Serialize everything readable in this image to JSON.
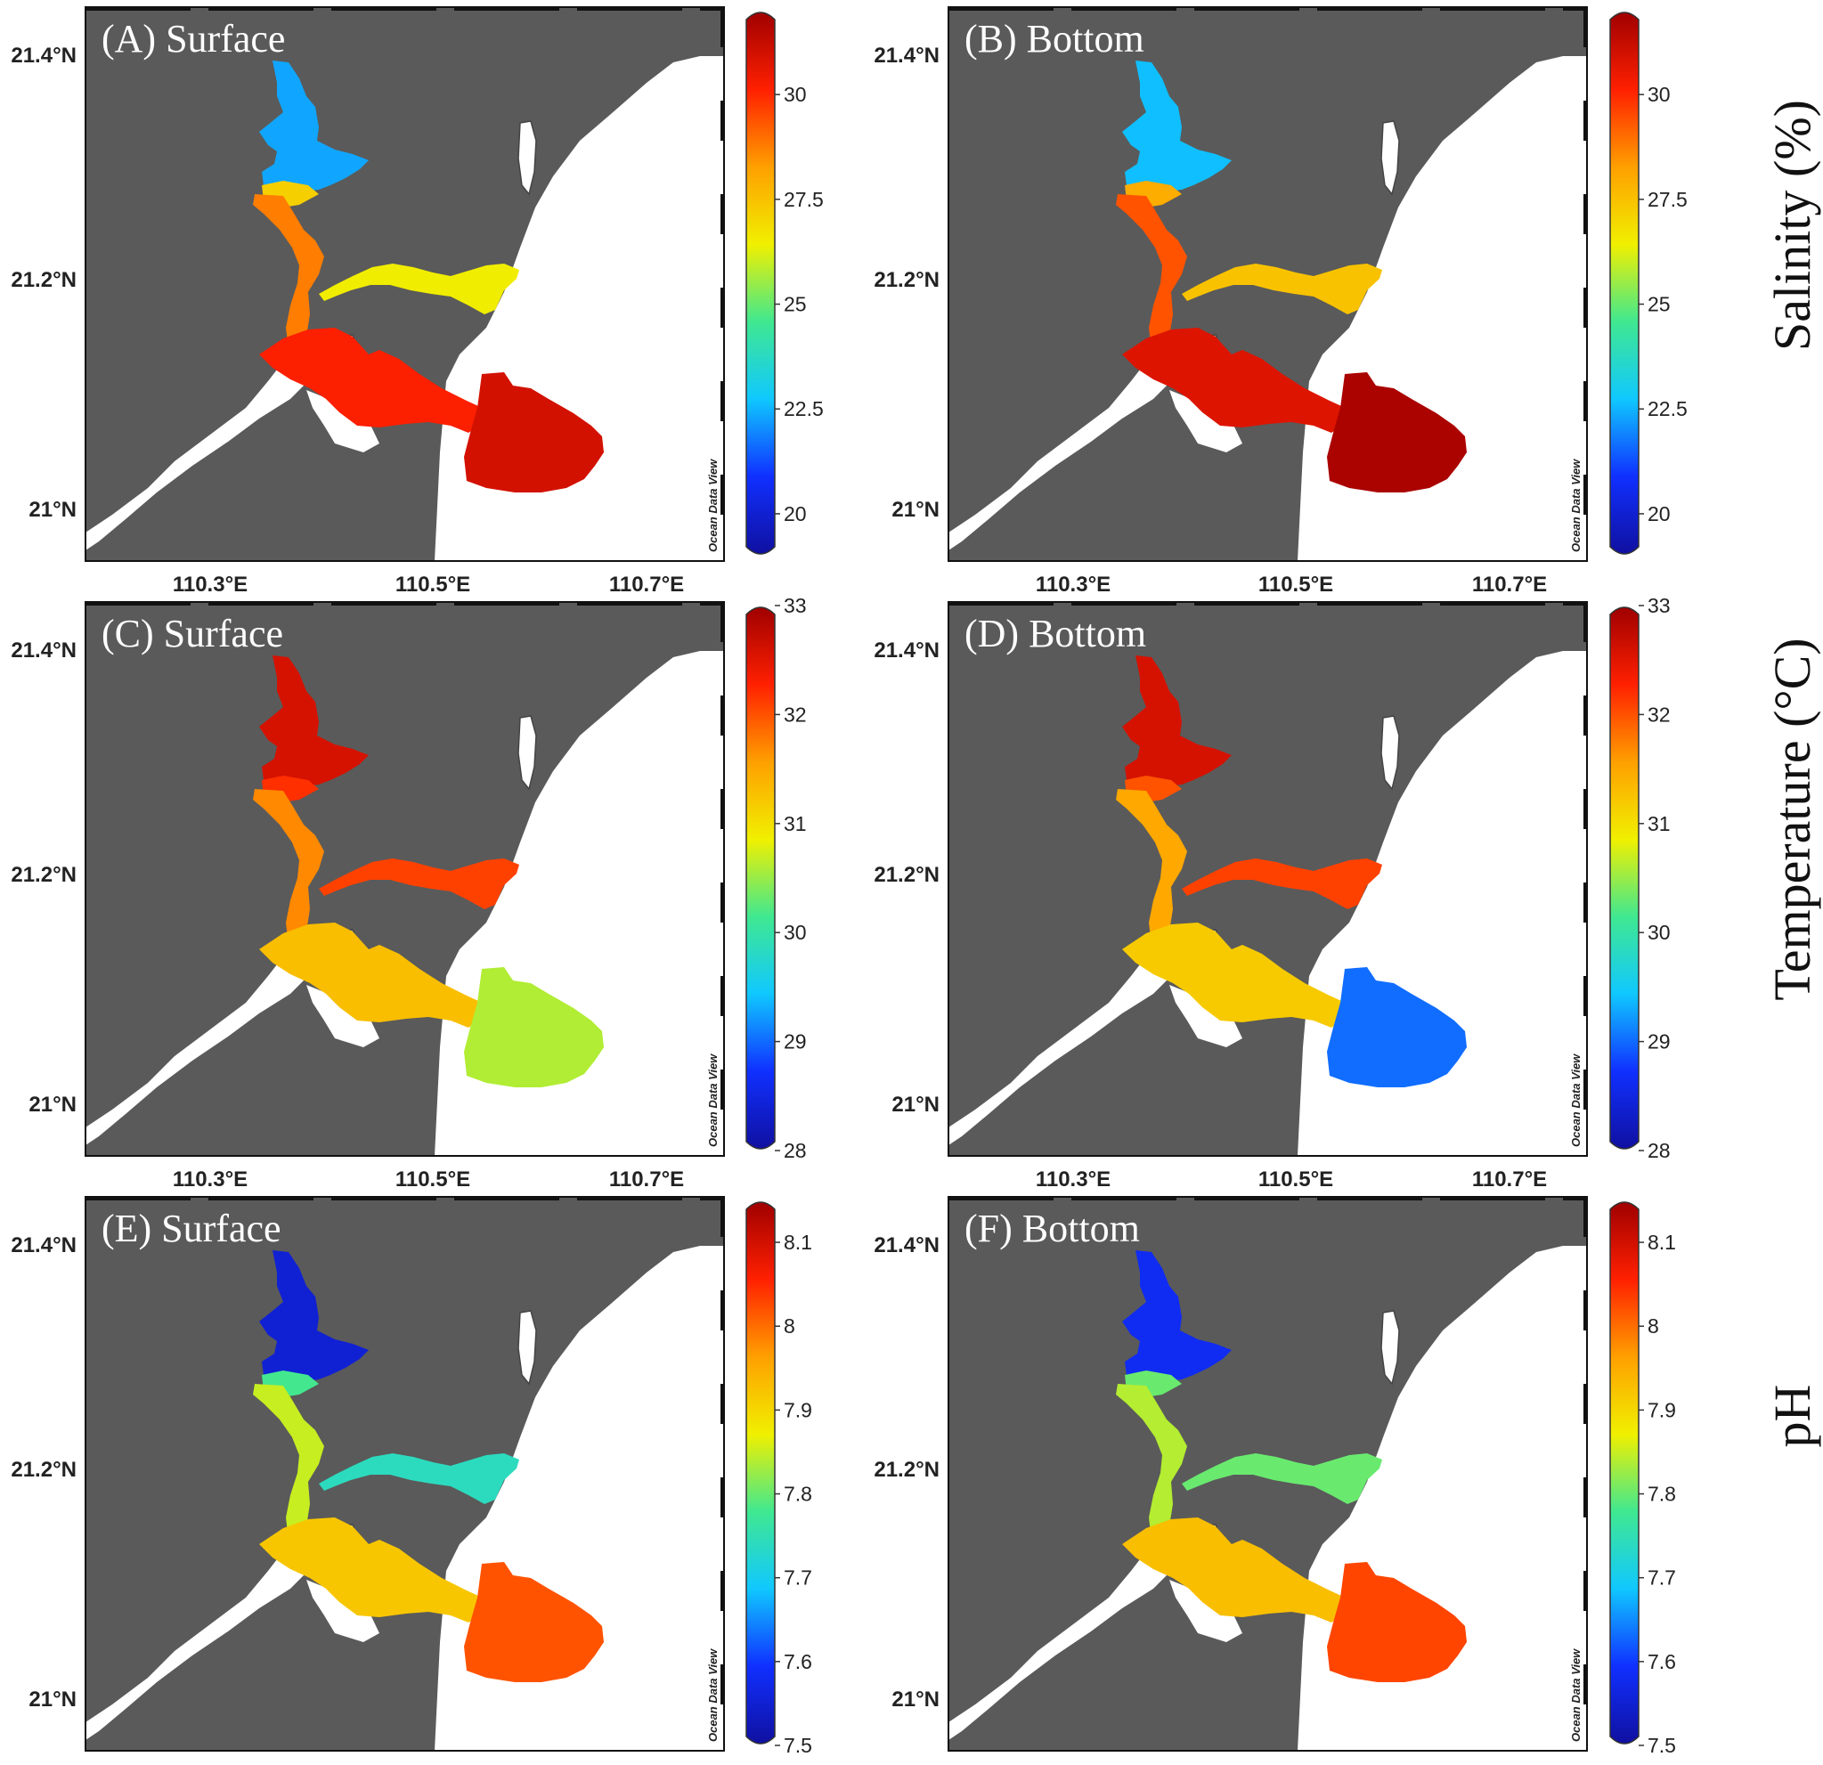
{
  "figure": {
    "row_labels": [
      "Salinity (%)",
      "Temperature (°C)",
      "pH"
    ],
    "watermark": "Ocean Data View"
  },
  "axes": {
    "lat_ticks": [
      "21.4°N",
      "21.2°N",
      "21°N"
    ],
    "lon_ticks": [
      "110.3°E",
      "110.5°E",
      "110.7°E"
    ]
  },
  "colors": {
    "land": "#5a5a5a",
    "sea": "#ffffff",
    "colormap": [
      "#1010a0",
      "#1030ff",
      "#10c8ff",
      "#40e890",
      "#f0f000",
      "#ffa000",
      "#ff2000",
      "#a00000"
    ]
  },
  "panels": [
    {
      "title": "(A) Surface",
      "variable": "Salinity (%)",
      "colorbar": {
        "ticks": [
          "30",
          "27.5",
          "25",
          "22.5",
          "20"
        ],
        "min": 19,
        "max": 32
      },
      "values": {
        "upper": 22.3,
        "junction": 27.2,
        "channel": 28.8,
        "east_branch": 26.5,
        "bay": 30.2,
        "mouth": 31.0
      }
    },
    {
      "title": "(B) Bottom",
      "variable": "Salinity (%)",
      "colorbar": {
        "ticks": [
          "30",
          "27.5",
          "25",
          "22.5",
          "20"
        ],
        "min": 19,
        "max": 32
      },
      "values": {
        "upper": 22.6,
        "junction": 28.0,
        "channel": 29.4,
        "east_branch": 27.5,
        "bay": 30.8,
        "mouth": 31.8
      }
    },
    {
      "title": "(C) Surface",
      "variable": "Temperature (°C)",
      "colorbar": {
        "ticks": [
          "33",
          "32",
          "31",
          "30",
          "29",
          "28"
        ],
        "min": 28,
        "max": 33
      },
      "values": {
        "upper": 32.6,
        "junction": 32.2,
        "channel": 31.7,
        "east_branch": 32.1,
        "bay": 31.3,
        "mouth": 30.6
      }
    },
    {
      "title": "(D) Bottom",
      "variable": "Temperature (°C)",
      "colorbar": {
        "ticks": [
          "33",
          "32",
          "31",
          "30",
          "29",
          "28"
        ],
        "min": 28,
        "max": 33
      },
      "values": {
        "upper": 32.6,
        "junction": 32.0,
        "channel": 31.5,
        "east_branch": 32.1,
        "bay": 31.2,
        "mouth": 29.0
      }
    },
    {
      "title": "(E) Surface",
      "variable": "pH",
      "colorbar": {
        "ticks": [
          "8.1",
          "8",
          "7.9",
          "7.8",
          "7.7",
          "7.6",
          "7.5"
        ],
        "min": 7.5,
        "max": 8.15
      },
      "values": {
        "upper": 7.55,
        "junction": 7.78,
        "channel": 7.85,
        "east_branch": 7.74,
        "bay": 7.92,
        "mouth": 8.02
      }
    },
    {
      "title": "(F) Bottom",
      "variable": "pH",
      "colorbar": {
        "ticks": [
          "8.1",
          "8",
          "7.9",
          "7.8",
          "7.7",
          "7.6",
          "7.5"
        ],
        "min": 7.5,
        "max": 8.15
      },
      "values": {
        "upper": 7.58,
        "junction": 7.8,
        "channel": 7.84,
        "east_branch": 7.8,
        "bay": 7.93,
        "mouth": 8.03
      }
    }
  ]
}
